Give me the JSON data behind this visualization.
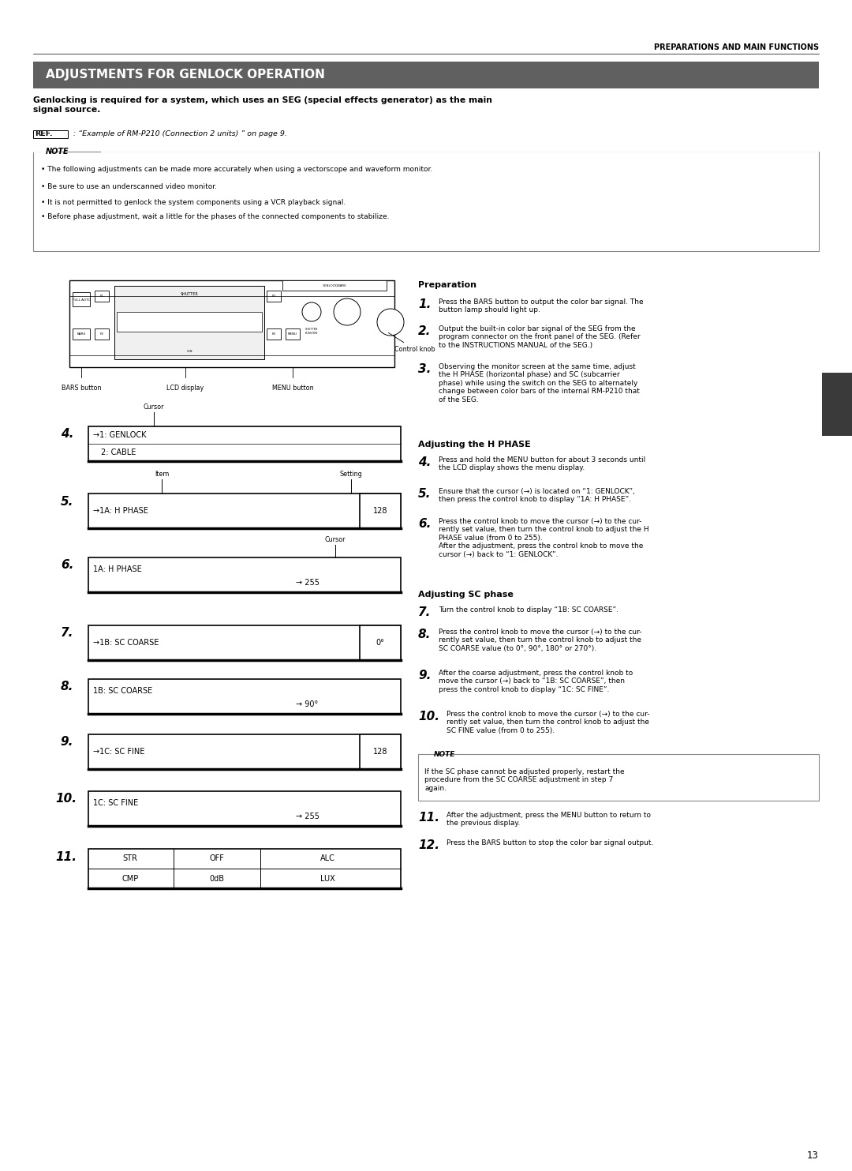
{
  "page_width": 10.8,
  "page_height": 14.83,
  "bg_color": "#ffffff",
  "header_text": "PREPARATIONS AND MAIN FUNCTIONS",
  "title_banner_text": "ADJUSTMENTS FOR GENLOCK OPERATION",
  "title_banner_bg": "#606060",
  "title_banner_fg": "#ffffff",
  "intro_bold": "Genlocking is required for a system, which uses an SEG (special effects generator) as the main\nsignal source.",
  "ref_text": "REF.",
  "ref_desc": " : “Example of RM-P210 (Connection 2 units) ” on page 9.",
  "note_title": "NOTE",
  "note_bullets": [
    "The following adjustments can be made more accurately when using a vectorscope and waveform monitor.",
    "Be sure to use an underscanned video monitor.",
    "It is not permitted to genlock the system components using a VCR playback signal.",
    "Before phase adjustment, wait a little for the phases of the connected components to stabilize."
  ],
  "prep_heading": "Preparation",
  "h_phase_heading": "Adjusting the H PHASE",
  "sc_phase_heading": "Adjusting SC phase",
  "note2_title": "NOTE",
  "note2_text": "If the SC phase cannot be adjusted properly, restart the\nprocedure from the SC COARSE adjustment in step 7\nagain.",
  "page_num": "13",
  "sidebar_color": "#3a3a3a"
}
